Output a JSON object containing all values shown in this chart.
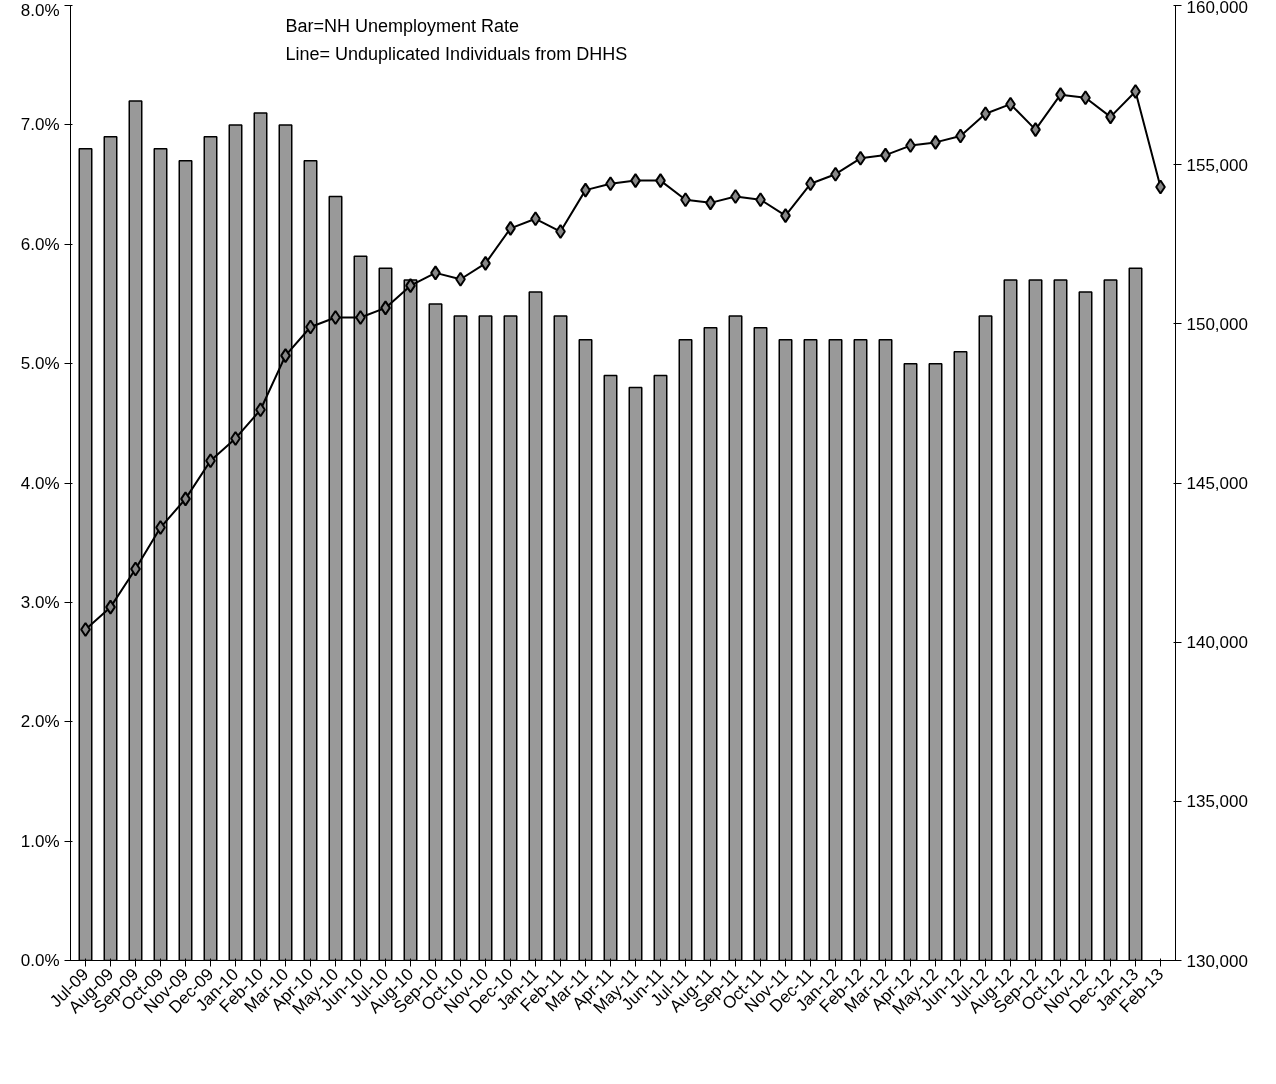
{
  "chart_data": {
    "type": "bar",
    "categories": [
      "Jul-09",
      "Aug-09",
      "Sep-09",
      "Oct-09",
      "Nov-09",
      "Dec-09",
      "Jan-10",
      "Feb-10",
      "Mar-10",
      "Apr-10",
      "May-10",
      "Jun-10",
      "Jul-10",
      "Aug-10",
      "Sep-10",
      "Oct-10",
      "Nov-10",
      "Dec-10",
      "Jan-11",
      "Feb-11",
      "Mar-11",
      "Apr-11",
      "May-11",
      "Jun-11",
      "Jul-11",
      "Aug-11",
      "Sep-11",
      "Oct-11",
      "Nov-11",
      "Dec-11",
      "Jan-12",
      "Feb-12",
      "Mar-12",
      "Apr-12",
      "May-12",
      "Jun-12",
      "Jul-12",
      "Aug-12",
      "Sep-12",
      "Oct-12",
      "Nov-12",
      "Dec-12",
      "Jan-13",
      "Feb-13"
    ],
    "series": [
      {
        "color": "#999999",
        "values": [
          6.8,
          6.9,
          7.2,
          6.8,
          6.7,
          6.9,
          7.0,
          7.1,
          7.0,
          6.7,
          6.4,
          5.9,
          5.8,
          5.7,
          5.5,
          5.4,
          5.4,
          5.4,
          5.6,
          5.4,
          5.2,
          4.9,
          4.8,
          4.9,
          5.2,
          5.3,
          5.4,
          5.3,
          5.2,
          5.2,
          5.2,
          5.2,
          5.2,
          5.0,
          5.0,
          5.1,
          5.4,
          5.7,
          5.7,
          5.7,
          5.6,
          5.7,
          5.8,
          null
        ]
      },
      {
        "type": "line",
        "axis": "y2",
        "color": "#000000",
        "marker": "diamond",
        "line_style": "solid",
        "values": [
          140400,
          141100,
          142300,
          143600,
          144500,
          145700,
          146400,
          147300,
          149000,
          149900,
          150200,
          150200,
          150500,
          151200,
          151600,
          151400,
          151900,
          153000,
          153300,
          152900,
          154200,
          154400,
          154500,
          154500,
          153900,
          153800,
          154000,
          153900,
          153400,
          154400,
          154700,
          155200,
          155300,
          155600,
          155700,
          155900,
          156600,
          156900,
          156100,
          157200,
          157100,
          156500,
          157300,
          154300
        ]
      }
    ],
    "ylim": [
      0,
      8
    ],
    "yticks": [
      {
        "value": 0,
        "label": "0.0%"
      },
      {
        "value": 1,
        "label": "1.0%"
      },
      {
        "value": 2,
        "label": "2.0%"
      },
      {
        "value": 3,
        "label": "3.0%"
      },
      {
        "value": 4,
        "label": "4.0%"
      },
      {
        "value": 5,
        "label": "5.0%"
      },
      {
        "value": 6,
        "label": "6.0%"
      },
      {
        "value": 7,
        "label": "7.0%"
      },
      {
        "value": 8,
        "label": "8.0%"
      }
    ],
    "y2lim": [
      130000,
      160000
    ],
    "y2ticks": [
      {
        "value": 130000,
        "label": "130,000"
      },
      {
        "value": 135000,
        "label": "135,000"
      },
      {
        "value": 140000,
        "label": "140,000"
      },
      {
        "value": 145000,
        "label": "145,000"
      },
      {
        "value": 150000,
        "label": "150,000"
      },
      {
        "value": 155000,
        "label": "155,000"
      },
      {
        "value": 160000,
        "label": "160,000"
      }
    ],
    "annotations": [
      "Bar=NH Unemployment Rate",
      "Line= Unduplicated Individuals from DHHS"
    ],
    "grid": false
  }
}
